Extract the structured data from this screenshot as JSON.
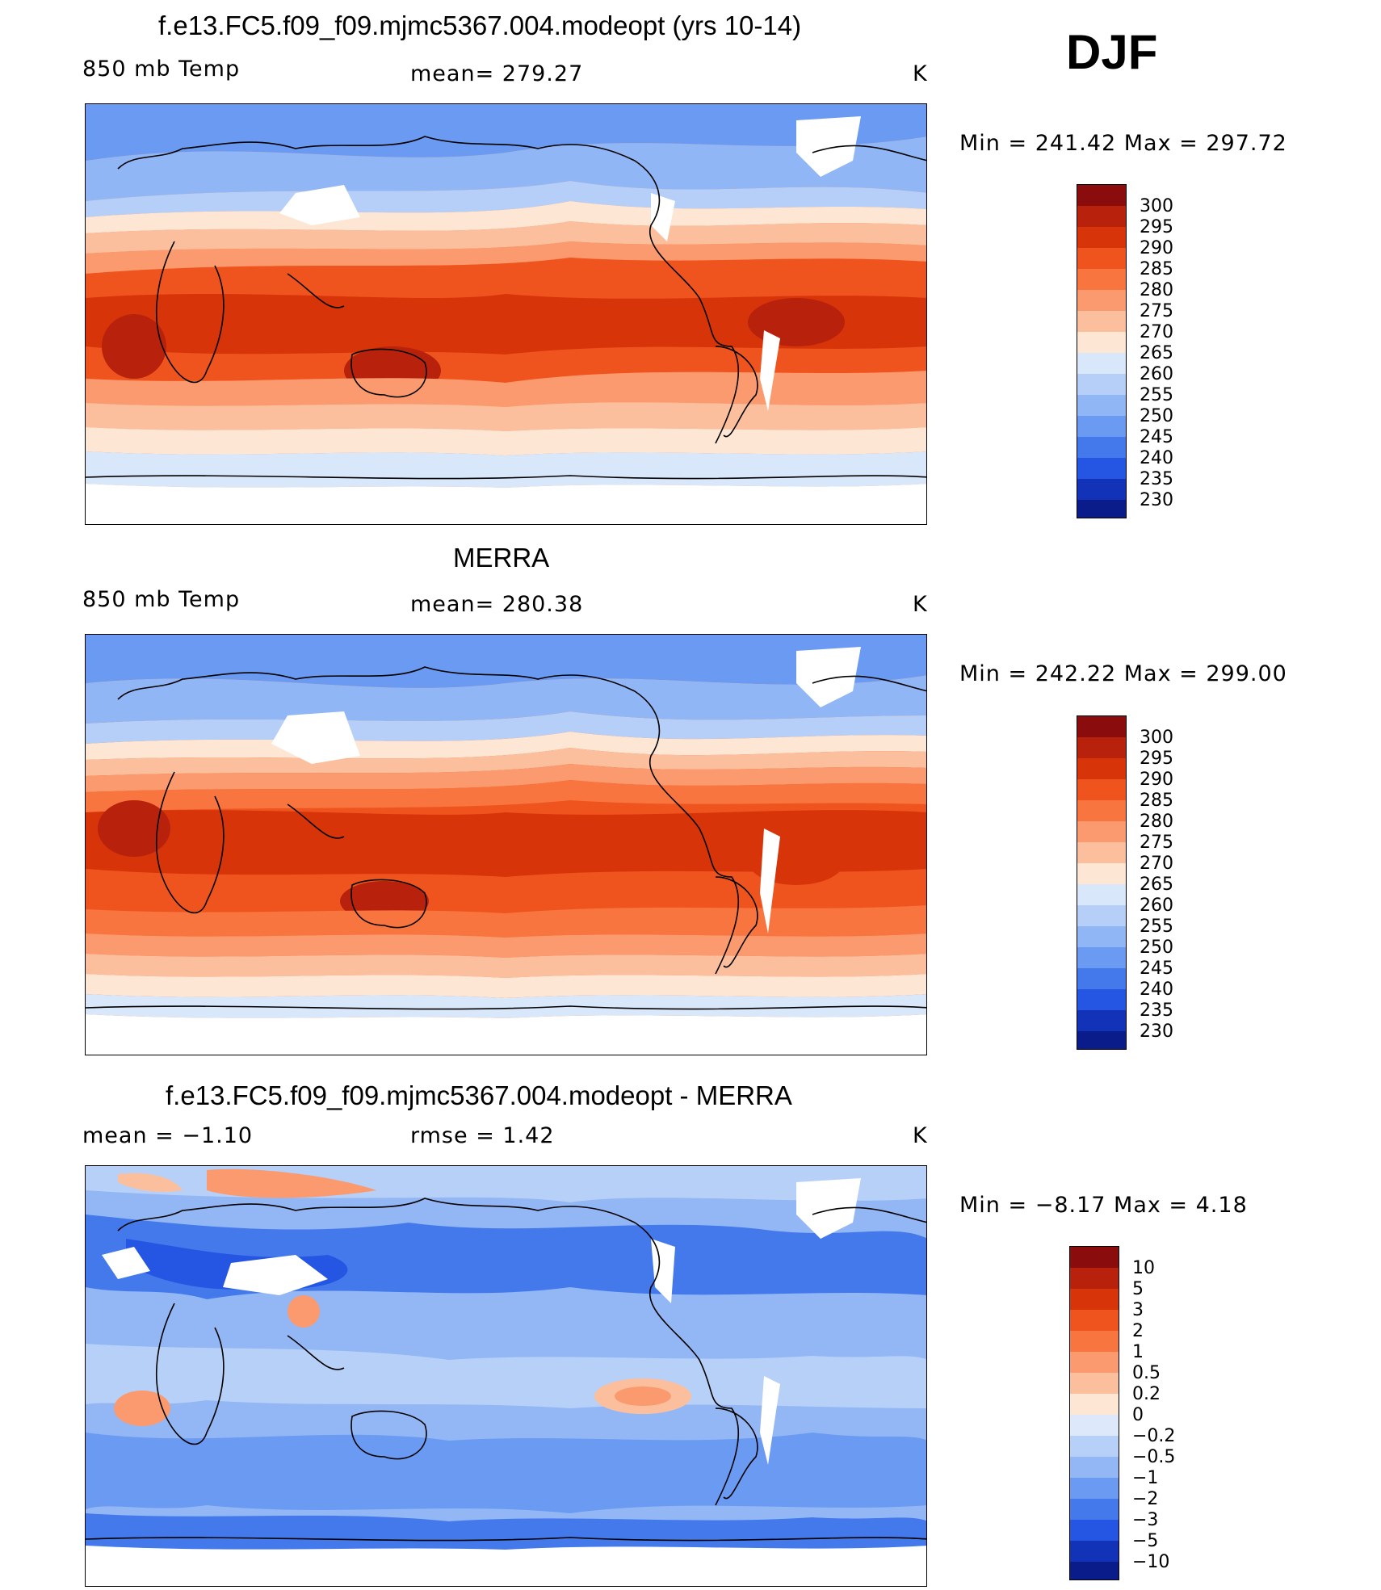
{
  "season": "DJF",
  "panels": [
    {
      "title": "f.e13.FC5.f09_f09.mjmc5367.004.modeopt (yrs 10-14)",
      "left_label": "850 mb Temp",
      "center_label": "mean= 279.27",
      "units": "K",
      "minmax": "Min  =  241.42  Max  =  297.72",
      "colorbar_labels": [
        "300",
        "295",
        "290",
        "285",
        "280",
        "275",
        "270",
        "265",
        "260",
        "255",
        "250",
        "245",
        "240",
        "235",
        "230"
      ]
    },
    {
      "title": "MERRA",
      "left_label": "850 mb Temp",
      "center_label": "mean= 280.38",
      "units": "K",
      "minmax": "Min  =  242.22  Max  =  299.00",
      "colorbar_labels": [
        "300",
        "295",
        "290",
        "285",
        "280",
        "275",
        "270",
        "265",
        "260",
        "255",
        "250",
        "245",
        "240",
        "235",
        "230"
      ]
    },
    {
      "title": "f.e13.FC5.f09_f09.mjmc5367.004.modeopt - MERRA",
      "left_label": "mean =   −1.10",
      "center_label": "rmse =    1.42",
      "units": "K",
      "minmax": "Min  =   −8.17  Max  =     4.18",
      "colorbar_labels": [
        "10",
        "5",
        "3",
        "2",
        "1",
        "0.5",
        "0.2",
        "0",
        "−0.2",
        "−0.5",
        "−1",
        "−2",
        "−3",
        "−5",
        "−10"
      ]
    }
  ],
  "colors": {
    "abs_scale": [
      "#8b0c0c",
      "#b8210c",
      "#d8340a",
      "#f0541e",
      "#f8753f",
      "#fb9a6e",
      "#fcbf9e",
      "#fde6d4",
      "#d9e7fb",
      "#b5cff8",
      "#90b6f5",
      "#6a9af1",
      "#4479ec",
      "#2455e3",
      "#1233b8",
      "#0a1c8a"
    ],
    "diff_scale": [
      "#8b0c0c",
      "#b8210c",
      "#d8340a",
      "#f0541e",
      "#f8753f",
      "#fb9a6e",
      "#fcbf9e",
      "#fde6d4",
      "#dde9fb",
      "#b7d0f8",
      "#93b7f5",
      "#6a9af1",
      "#4479ec",
      "#2455e3",
      "#1233b8",
      "#0a1c8a"
    ]
  }
}
